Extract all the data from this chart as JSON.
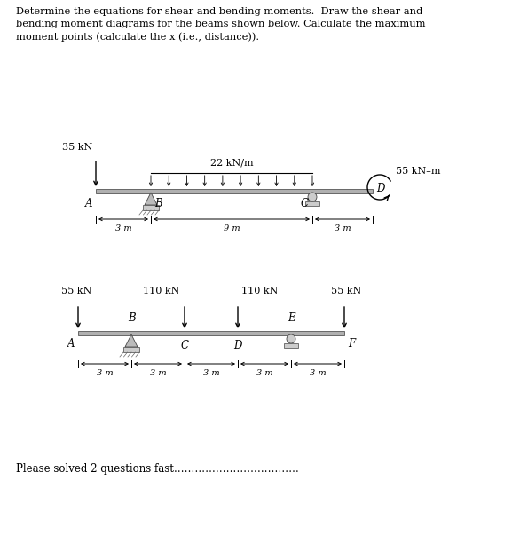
{
  "title_text": "Determine the equations for shear and bending moments.  Draw the shear and\nbending moment diagrams for the beams shown below. Calculate the maximum\nmoment points (calculate the x (i.e., distance)).",
  "footer_text": "Please solved 2 questions fast………………………………",
  "background_color": "#ffffff",
  "beam1": {
    "label_A": "A",
    "label_B": "B",
    "label_C": "C",
    "label_D": "D",
    "dim_AB": "3 m",
    "dim_BC": "9 m",
    "dim_CD": "3 m",
    "load_point": "35 kN",
    "load_dist": "22 kN/m",
    "load_moment": "55 kN–m"
  },
  "beam2": {
    "label_A": "A",
    "label_B": "B",
    "label_C": "C",
    "label_D": "D",
    "label_E": "E",
    "label_F": "F",
    "dim": "3 m",
    "load_55L": "55 kN",
    "load_110L": "110 kN",
    "load_110R": "110 kN",
    "load_55R": "55 kN"
  }
}
